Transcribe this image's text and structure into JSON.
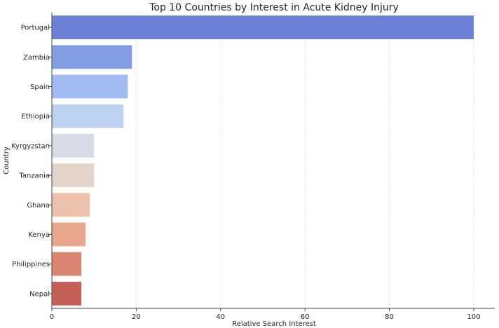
{
  "chart_data": {
    "type": "bar",
    "orientation": "horizontal",
    "title": "Top 10 Countries by Interest in Acute Kidney Injury",
    "xlabel": "Relative Search Interest",
    "ylabel": "Country",
    "xlim": [
      0,
      105
    ],
    "xticks": [
      0,
      20,
      40,
      60,
      80,
      100
    ],
    "grid": true,
    "categories": [
      "Portugal",
      "Zambia",
      "Spain",
      "Ethiopia",
      "Kyrgyzstan",
      "Tanzania",
      "Ghana",
      "Kenya",
      "Philippines",
      "Nepal"
    ],
    "values": [
      100,
      19,
      18,
      17,
      10,
      10,
      9,
      8,
      7,
      7
    ],
    "colors": [
      "#6b80d6",
      "#829fe6",
      "#a1bcf3",
      "#bfd1f0",
      "#d6dbe6",
      "#e4d5cb",
      "#ecc2ad",
      "#e8a68c",
      "#da8571",
      "#c65f55"
    ]
  }
}
